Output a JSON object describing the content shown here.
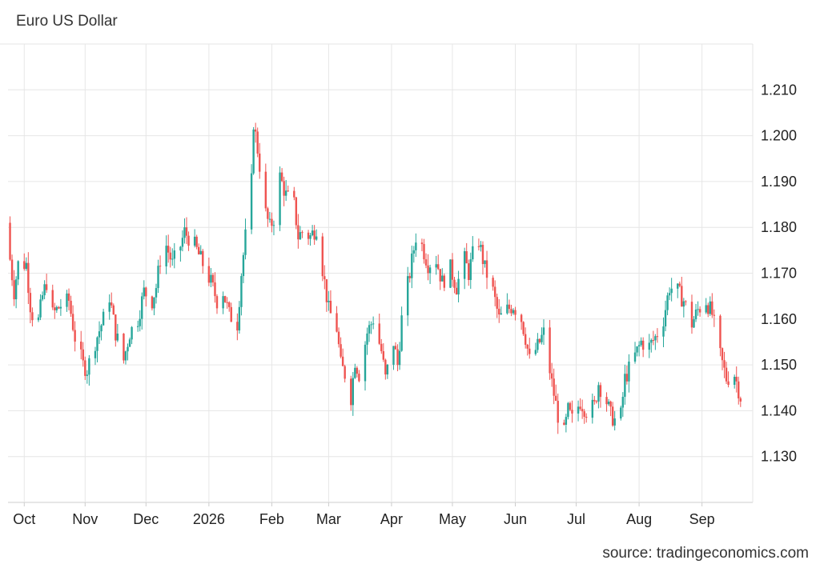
{
  "title": "Euro US Dollar",
  "source": "source: tradingeconomics.com",
  "colors": {
    "up": "#26a69a",
    "down": "#ef5350",
    "grid": "#e6e6e6",
    "axis": "#cccccc"
  },
  "chart_data": {
    "type": "candlestick",
    "title": "Euro US Dollar",
    "ylim": [
      1.12,
      1.22
    ],
    "yticks": [
      1.13,
      1.14,
      1.15,
      1.16,
      1.17,
      1.18,
      1.19,
      1.2,
      1.21
    ],
    "ytick_labels": [
      "1.130",
      "1.140",
      "1.150",
      "1.160",
      "1.170",
      "1.180",
      "1.190",
      "1.200",
      "1.210"
    ],
    "xlim": [
      "2025-09-28",
      "2026-09-30"
    ],
    "xticks": [
      {
        "label": "Oct",
        "date": "2025-10-06"
      },
      {
        "label": "Nov",
        "date": "2025-11-05"
      },
      {
        "label": "Dec",
        "date": "2025-12-05"
      },
      {
        "label": "2026",
        "date": "2026-01-05"
      },
      {
        "label": "Feb",
        "date": "2026-02-05"
      },
      {
        "label": "Mar",
        "date": "2026-03-05"
      },
      {
        "label": "Apr",
        "date": "2026-04-05"
      },
      {
        "label": "May",
        "date": "2026-05-05"
      },
      {
        "label": "Jun",
        "date": "2026-06-05"
      },
      {
        "label": "Jul",
        "date": "2026-07-05"
      },
      {
        "label": "Aug",
        "date": "2026-08-05"
      },
      {
        "label": "Sep",
        "date": "2026-09-05"
      }
    ],
    "grid": true,
    "close_anchors": [
      [
        "2025-09-29",
        1.173
      ],
      [
        "2025-10-01",
        1.166
      ],
      [
        "2025-10-03",
        1.172
      ],
      [
        "2025-10-07",
        1.172
      ],
      [
        "2025-10-09",
        1.163
      ],
      [
        "2025-10-12",
        1.157
      ],
      [
        "2025-10-15",
        1.165
      ],
      [
        "2025-10-17",
        1.168
      ],
      [
        "2025-10-20",
        1.161
      ],
      [
        "2025-10-24",
        1.163
      ],
      [
        "2025-10-28",
        1.164
      ],
      [
        "2025-10-31",
        1.156
      ],
      [
        "2025-11-04",
        1.15
      ],
      [
        "2025-11-06",
        1.149
      ],
      [
        "2025-11-10",
        1.155
      ],
      [
        "2025-11-14",
        1.16
      ],
      [
        "2025-11-17",
        1.165
      ],
      [
        "2025-11-20",
        1.157
      ],
      [
        "2025-11-24",
        1.151
      ],
      [
        "2025-11-27",
        1.157
      ],
      [
        "2025-12-01",
        1.16
      ],
      [
        "2025-12-04",
        1.166
      ],
      [
        "2025-12-08",
        1.164
      ],
      [
        "2025-12-10",
        1.167
      ],
      [
        "2025-12-12",
        1.173
      ],
      [
        "2025-12-15",
        1.176
      ],
      [
        "2025-12-18",
        1.172
      ],
      [
        "2025-12-22",
        1.176
      ],
      [
        "2025-12-24",
        1.179
      ],
      [
        "2025-12-29",
        1.176
      ],
      [
        "2026-01-02",
        1.172
      ],
      [
        "2026-01-06",
        1.168
      ],
      [
        "2026-01-09",
        1.164
      ],
      [
        "2026-01-12",
        1.166
      ],
      [
        "2026-01-15",
        1.161
      ],
      [
        "2026-01-19",
        1.159
      ],
      [
        "2026-01-21",
        1.17
      ],
      [
        "2026-01-23",
        1.178
      ],
      [
        "2026-01-26",
        1.19
      ],
      [
        "2026-01-27",
        1.203
      ],
      [
        "2026-01-29",
        1.197
      ],
      [
        "2026-02-02",
        1.183
      ],
      [
        "2026-02-04",
        1.18
      ],
      [
        "2026-02-06",
        1.182
      ],
      [
        "2026-02-09",
        1.191
      ],
      [
        "2026-02-12",
        1.187
      ],
      [
        "2026-02-16",
        1.185
      ],
      [
        "2026-02-18",
        1.178
      ],
      [
        "2026-02-20",
        1.179
      ],
      [
        "2026-02-24",
        1.178
      ],
      [
        "2026-02-27",
        1.18
      ],
      [
        "2026-03-03",
        1.168
      ],
      [
        "2026-03-05",
        1.162
      ],
      [
        "2026-03-09",
        1.158
      ],
      [
        "2026-03-11",
        1.15
      ],
      [
        "2026-03-13",
        1.148
      ],
      [
        "2026-03-16",
        1.143
      ],
      [
        "2026-03-18",
        1.151
      ],
      [
        "2026-03-20",
        1.148
      ],
      [
        "2026-03-24",
        1.157
      ],
      [
        "2026-03-27",
        1.16
      ],
      [
        "2026-03-31",
        1.153
      ],
      [
        "2026-04-02",
        1.147
      ],
      [
        "2026-04-06",
        1.155
      ],
      [
        "2026-04-08",
        1.15
      ],
      [
        "2026-04-10",
        1.16
      ],
      [
        "2026-04-14",
        1.17
      ],
      [
        "2026-04-17",
        1.178
      ],
      [
        "2026-04-20",
        1.176
      ],
      [
        "2026-04-23",
        1.172
      ],
      [
        "2026-04-27",
        1.173
      ],
      [
        "2026-04-30",
        1.168
      ],
      [
        "2026-05-04",
        1.171
      ],
      [
        "2026-05-07",
        1.167
      ],
      [
        "2026-05-11",
        1.173
      ],
      [
        "2026-05-13",
        1.17
      ],
      [
        "2026-05-15",
        1.174
      ],
      [
        "2026-05-18",
        1.177
      ],
      [
        "2026-05-21",
        1.171
      ],
      [
        "2026-05-25",
        1.166
      ],
      [
        "2026-05-28",
        1.16
      ],
      [
        "2026-06-01",
        1.162
      ],
      [
        "2026-06-04",
        1.163
      ],
      [
        "2026-06-08",
        1.16
      ],
      [
        "2026-06-10",
        1.156
      ],
      [
        "2026-06-12",
        1.151
      ],
      [
        "2026-06-16",
        1.154
      ],
      [
        "2026-06-19",
        1.157
      ],
      [
        "2026-06-23",
        1.146
      ],
      [
        "2026-06-26",
        1.139
      ],
      [
        "2026-06-29",
        1.135
      ],
      [
        "2026-07-01",
        1.14
      ],
      [
        "2026-07-03",
        1.138
      ],
      [
        "2026-07-07",
        1.142
      ],
      [
        "2026-07-10",
        1.14
      ],
      [
        "2026-07-14",
        1.141
      ],
      [
        "2026-07-16",
        1.146
      ],
      [
        "2026-07-20",
        1.142
      ],
      [
        "2026-07-22",
        1.139
      ],
      [
        "2026-07-24",
        1.138
      ],
      [
        "2026-07-27",
        1.139
      ],
      [
        "2026-07-29",
        1.147
      ],
      [
        "2026-08-03",
        1.152
      ],
      [
        "2026-08-06",
        1.155
      ],
      [
        "2026-08-10",
        1.154
      ],
      [
        "2026-08-13",
        1.156
      ],
      [
        "2026-08-17",
        1.16
      ],
      [
        "2026-08-20",
        1.167
      ],
      [
        "2026-08-24",
        1.166
      ],
      [
        "2026-08-27",
        1.164
      ],
      [
        "2026-08-31",
        1.159
      ],
      [
        "2026-09-03",
        1.162
      ],
      [
        "2026-09-07",
        1.164
      ],
      [
        "2026-09-10",
        1.161
      ],
      [
        "2026-09-14",
        1.152
      ],
      [
        "2026-09-17",
        1.147
      ],
      [
        "2026-09-21",
        1.148
      ],
      [
        "2026-09-24",
        1.143
      ]
    ]
  }
}
